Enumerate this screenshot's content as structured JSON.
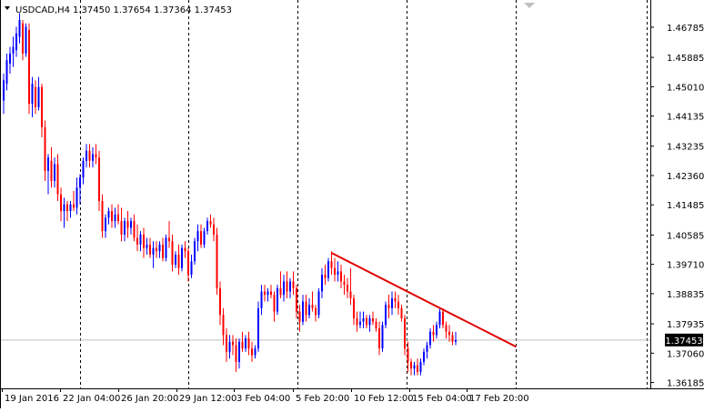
{
  "header": {
    "symbol": "USDCAD,H4",
    "ohlc": "1.37450 1.37654 1.37364 1.37453"
  },
  "price_axis": {
    "ticks": [
      "1.46785",
      "1.45885",
      "1.45010",
      "1.44135",
      "1.43235",
      "1.42360",
      "1.41485",
      "1.40585",
      "1.39710",
      "1.38835",
      "1.37935",
      "1.37060",
      "1.36185"
    ],
    "current_price": "1.37453"
  },
  "time_axis": {
    "labels": [
      "19 Jan 2016",
      "22 Jan 04:00",
      "26 Jan 20:00",
      "29 Jan 12:00",
      "3 Feb 04:00",
      "5 Feb 20:00",
      "10 Feb 12:00",
      "15 Feb 04:00",
      "17 Feb 20:00"
    ]
  },
  "colors": {
    "bull_candle": "#0000ff",
    "bear_candle": "#ff0000",
    "trendline": "#e00000",
    "grid": "#000000",
    "price_line": "#c0c0c0",
    "current_price_bg": "#000000",
    "current_price_fg": "#ffffff"
  },
  "chart_data": {
    "type": "candlestick",
    "symbol": "USDCAD",
    "timeframe": "H4",
    "ylim": [
      1.362,
      1.4738
    ],
    "current_price": 1.37453,
    "vertical_separators": [
      "22 Jan 04:00",
      "26 Jan 20:00",
      "29 Jan 12:00",
      "3 Feb 04:00",
      "5 Feb 20:00",
      "10 Feb 12:00",
      "15 Feb 04:00",
      "17 Feb 20:00"
    ],
    "trendline": {
      "from": {
        "bar": 103,
        "price": 1.4005
      },
      "to": {
        "bar": 161,
        "price": 1.3725
      }
    },
    "candles": [
      [
        1.446,
        1.454,
        1.442,
        1.452
      ],
      [
        1.451,
        1.46,
        1.449,
        1.458
      ],
      [
        1.457,
        1.462,
        1.454,
        1.46
      ],
      [
        1.46,
        1.465,
        1.456,
        1.462
      ],
      [
        1.461,
        1.468,
        1.459,
        1.466
      ],
      [
        1.465,
        1.472,
        1.463,
        1.47
      ],
      [
        1.469,
        1.47,
        1.458,
        1.46
      ],
      [
        1.46,
        1.469,
        1.459,
        1.468
      ],
      [
        1.467,
        1.469,
        1.442,
        1.445
      ],
      [
        1.445,
        1.453,
        1.441,
        1.451
      ],
      [
        1.45,
        1.452,
        1.442,
        1.444
      ],
      [
        1.444,
        1.453,
        1.443,
        1.45
      ],
      [
        1.45,
        1.451,
        1.435,
        1.438
      ],
      [
        1.438,
        1.44,
        1.422,
        1.425
      ],
      [
        1.425,
        1.43,
        1.418,
        1.429
      ],
      [
        1.428,
        1.432,
        1.42,
        1.422
      ],
      [
        1.422,
        1.429,
        1.42,
        1.427
      ],
      [
        1.427,
        1.43,
        1.416,
        1.418
      ],
      [
        1.418,
        1.42,
        1.41,
        1.413
      ],
      [
        1.413,
        1.417,
        1.408,
        1.415
      ],
      [
        1.415,
        1.416,
        1.41,
        1.413
      ],
      [
        1.413,
        1.416,
        1.411,
        1.415
      ],
      [
        1.415,
        1.419,
        1.413,
        1.414
      ],
      [
        1.414,
        1.423,
        1.412,
        1.42
      ],
      [
        1.42,
        1.424,
        1.415,
        1.423
      ],
      [
        1.423,
        1.429,
        1.421,
        1.428
      ],
      [
        1.428,
        1.433,
        1.426,
        1.431
      ],
      [
        1.431,
        1.433,
        1.426,
        1.428
      ],
      [
        1.428,
        1.432,
        1.426,
        1.43
      ],
      [
        1.43,
        1.433,
        1.427,
        1.429
      ],
      [
        1.429,
        1.431,
        1.413,
        1.416
      ],
      [
        1.416,
        1.418,
        1.405,
        1.407
      ],
      [
        1.407,
        1.412,
        1.405,
        1.411
      ],
      [
        1.411,
        1.414,
        1.409,
        1.413
      ],
      [
        1.413,
        1.415,
        1.408,
        1.41
      ],
      [
        1.41,
        1.414,
        1.408,
        1.412
      ],
      [
        1.412,
        1.415,
        1.409,
        1.41
      ],
      [
        1.41,
        1.414,
        1.404,
        1.406
      ],
      [
        1.406,
        1.411,
        1.404,
        1.41
      ],
      [
        1.41,
        1.413,
        1.405,
        1.408
      ],
      [
        1.408,
        1.411,
        1.406,
        1.41
      ],
      [
        1.41,
        1.412,
        1.404,
        1.405
      ],
      [
        1.405,
        1.409,
        1.401,
        1.403
      ],
      [
        1.403,
        1.407,
        1.401,
        1.406
      ],
      [
        1.406,
        1.408,
        1.399,
        1.402
      ],
      [
        1.402,
        1.405,
        1.4,
        1.403
      ],
      [
        1.403,
        1.405,
        1.399,
        1.4
      ],
      [
        1.4,
        1.404,
        1.396,
        1.402
      ],
      [
        1.402,
        1.404,
        1.399,
        1.401
      ],
      [
        1.401,
        1.404,
        1.399,
        1.403
      ],
      [
        1.403,
        1.405,
        1.398,
        1.399
      ],
      [
        1.399,
        1.406,
        1.398,
        1.405
      ],
      [
        1.405,
        1.41,
        1.402,
        1.404
      ],
      [
        1.404,
        1.406,
        1.395,
        1.397
      ],
      [
        1.397,
        1.401,
        1.396,
        1.4
      ],
      [
        1.4,
        1.403,
        1.394,
        1.396
      ],
      [
        1.396,
        1.403,
        1.395,
        1.402
      ],
      [
        1.402,
        1.404,
        1.399,
        1.401
      ],
      [
        1.401,
        1.402,
        1.392,
        1.394
      ],
      [
        1.394,
        1.4,
        1.393,
        1.398
      ],
      [
        1.398,
        1.405,
        1.397,
        1.404
      ],
      [
        1.404,
        1.409,
        1.401,
        1.407
      ],
      [
        1.407,
        1.409,
        1.402,
        1.403
      ],
      [
        1.403,
        1.408,
        1.402,
        1.407
      ],
      [
        1.407,
        1.411,
        1.406,
        1.41
      ],
      [
        1.41,
        1.412,
        1.408,
        1.409
      ],
      [
        1.409,
        1.411,
        1.404,
        1.406
      ],
      [
        1.406,
        1.408,
        1.388,
        1.39
      ],
      [
        1.39,
        1.392,
        1.379,
        1.382
      ],
      [
        1.382,
        1.384,
        1.373,
        1.376
      ],
      [
        1.376,
        1.378,
        1.368,
        1.371
      ],
      [
        1.371,
        1.376,
        1.369,
        1.374
      ],
      [
        1.374,
        1.376,
        1.37,
        1.373
      ],
      [
        1.373,
        1.375,
        1.365,
        1.368
      ],
      [
        1.368,
        1.375,
        1.366,
        1.374
      ],
      [
        1.374,
        1.377,
        1.371,
        1.372
      ],
      [
        1.372,
        1.376,
        1.371,
        1.375
      ],
      [
        1.375,
        1.377,
        1.37,
        1.372
      ],
      [
        1.372,
        1.374,
        1.368,
        1.37
      ],
      [
        1.37,
        1.373,
        1.369,
        1.372
      ],
      [
        1.372,
        1.386,
        1.371,
        1.384
      ],
      [
        1.384,
        1.391,
        1.382,
        1.389
      ],
      [
        1.389,
        1.391,
        1.386,
        1.388
      ],
      [
        1.388,
        1.39,
        1.386,
        1.389
      ],
      [
        1.389,
        1.391,
        1.387,
        1.388
      ],
      [
        1.388,
        1.389,
        1.38,
        1.383
      ],
      [
        1.383,
        1.391,
        1.382,
        1.39
      ],
      [
        1.39,
        1.395,
        1.387,
        1.388
      ],
      [
        1.388,
        1.394,
        1.386,
        1.392
      ],
      [
        1.392,
        1.395,
        1.387,
        1.389
      ],
      [
        1.389,
        1.393,
        1.387,
        1.392
      ],
      [
        1.392,
        1.395,
        1.388,
        1.39
      ],
      [
        1.39,
        1.391,
        1.381,
        1.383
      ],
      [
        1.383,
        1.385,
        1.377,
        1.38
      ],
      [
        1.38,
        1.388,
        1.379,
        1.386
      ],
      [
        1.386,
        1.388,
        1.38,
        1.382
      ],
      [
        1.382,
        1.387,
        1.381,
        1.385
      ],
      [
        1.385,
        1.389,
        1.383,
        1.384
      ],
      [
        1.384,
        1.385,
        1.38,
        1.382
      ],
      [
        1.382,
        1.39,
        1.381,
        1.389
      ],
      [
        1.389,
        1.396,
        1.387,
        1.394
      ],
      [
        1.394,
        1.397,
        1.391,
        1.393
      ],
      [
        1.393,
        1.399,
        1.392,
        1.398
      ],
      [
        1.398,
        1.401,
        1.394,
        1.396
      ],
      [
        1.396,
        1.399,
        1.392,
        1.394
      ],
      [
        1.394,
        1.398,
        1.392,
        1.395
      ],
      [
        1.395,
        1.397,
        1.39,
        1.392
      ],
      [
        1.392,
        1.394,
        1.388,
        1.391
      ],
      [
        1.391,
        1.393,
        1.387,
        1.389
      ],
      [
        1.389,
        1.396,
        1.385,
        1.387
      ],
      [
        1.387,
        1.388,
        1.379,
        1.381
      ],
      [
        1.381,
        1.383,
        1.377,
        1.379
      ],
      [
        1.379,
        1.383,
        1.378,
        1.38
      ],
      [
        1.38,
        1.383,
        1.378,
        1.381
      ],
      [
        1.381,
        1.382,
        1.378,
        1.379
      ],
      [
        1.379,
        1.382,
        1.377,
        1.381
      ],
      [
        1.381,
        1.383,
        1.379,
        1.38
      ],
      [
        1.38,
        1.381,
        1.377,
        1.378
      ],
      [
        1.378,
        1.38,
        1.37,
        1.372
      ],
      [
        1.372,
        1.38,
        1.371,
        1.379
      ],
      [
        1.379,
        1.386,
        1.378,
        1.385
      ],
      [
        1.385,
        1.388,
        1.381,
        1.384
      ],
      [
        1.384,
        1.389,
        1.382,
        1.387
      ],
      [
        1.387,
        1.389,
        1.384,
        1.386
      ],
      [
        1.386,
        1.388,
        1.382,
        1.384
      ],
      [
        1.384,
        1.385,
        1.38,
        1.381
      ],
      [
        1.381,
        1.382,
        1.37,
        1.372
      ],
      [
        1.372,
        1.374,
        1.365,
        1.368
      ],
      [
        1.368,
        1.369,
        1.364,
        1.366
      ],
      [
        1.366,
        1.368,
        1.364,
        1.367
      ],
      [
        1.367,
        1.369,
        1.364,
        1.365
      ],
      [
        1.365,
        1.369,
        1.364,
        1.368
      ],
      [
        1.368,
        1.372,
        1.367,
        1.371
      ],
      [
        1.371,
        1.374,
        1.369,
        1.373
      ],
      [
        1.373,
        1.378,
        1.372,
        1.377
      ],
      [
        1.377,
        1.379,
        1.374,
        1.376
      ],
      [
        1.376,
        1.38,
        1.375,
        1.379
      ],
      [
        1.379,
        1.384,
        1.378,
        1.383
      ],
      [
        1.383,
        1.384,
        1.378,
        1.379
      ],
      [
        1.379,
        1.38,
        1.375,
        1.377
      ],
      [
        1.377,
        1.379,
        1.374,
        1.376
      ],
      [
        1.376,
        1.377,
        1.373,
        1.374
      ],
      [
        1.374,
        1.377,
        1.373,
        1.3745
      ]
    ]
  }
}
